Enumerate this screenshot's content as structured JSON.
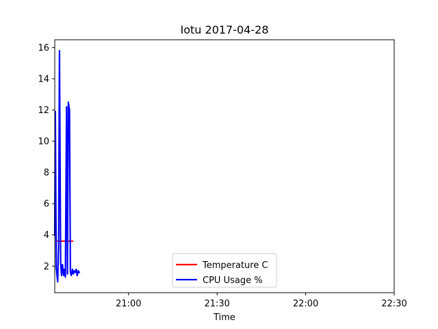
{
  "chart_data": {
    "type": "line",
    "title": "Iotu 2017-04-28",
    "xlabel": "Time",
    "ylabel": "",
    "xlim": [
      "20:35",
      "22:30"
    ],
    "ylim": [
      0.3,
      16.5
    ],
    "x_ticks": [
      "21:00",
      "21:30",
      "22:00",
      "22:30"
    ],
    "y_ticks": [
      2,
      4,
      6,
      8,
      10,
      12,
      14,
      16
    ],
    "grid": false,
    "legend_position": "bottom-center",
    "series": [
      {
        "name": "Temperature C",
        "color": "#ff0000",
        "x": [
          "20:36",
          "20:41"
        ],
        "y": [
          3.6,
          3.6
        ]
      },
      {
        "name": "CPU Usage %",
        "color": "#0000ff",
        "x": [
          "20:35.0",
          "20:35.2",
          "20:35.5",
          "20:36.0",
          "20:36.3",
          "20:36.6",
          "20:37.0",
          "20:37.3",
          "20:37.6",
          "20:38.0",
          "20:38.3",
          "20:38.6",
          "20:39.0",
          "20:39.3",
          "20:39.6",
          "20:40.0",
          "20:40.3",
          "20:40.6",
          "20:41.0",
          "20:41.3",
          "20:41.6",
          "20:42.0",
          "20:42.3",
          "20:42.6",
          "20:43.0",
          "20:43.3"
        ],
        "y": [
          4.0,
          11.9,
          1.9,
          1.0,
          3.5,
          15.8,
          2.2,
          1.4,
          2.1,
          1.4,
          1.8,
          1.3,
          12.2,
          1.5,
          12.5,
          12.0,
          1.6,
          1.4,
          1.8,
          1.5,
          1.7,
          1.6,
          1.8,
          1.4,
          1.7,
          1.6
        ]
      }
    ]
  }
}
